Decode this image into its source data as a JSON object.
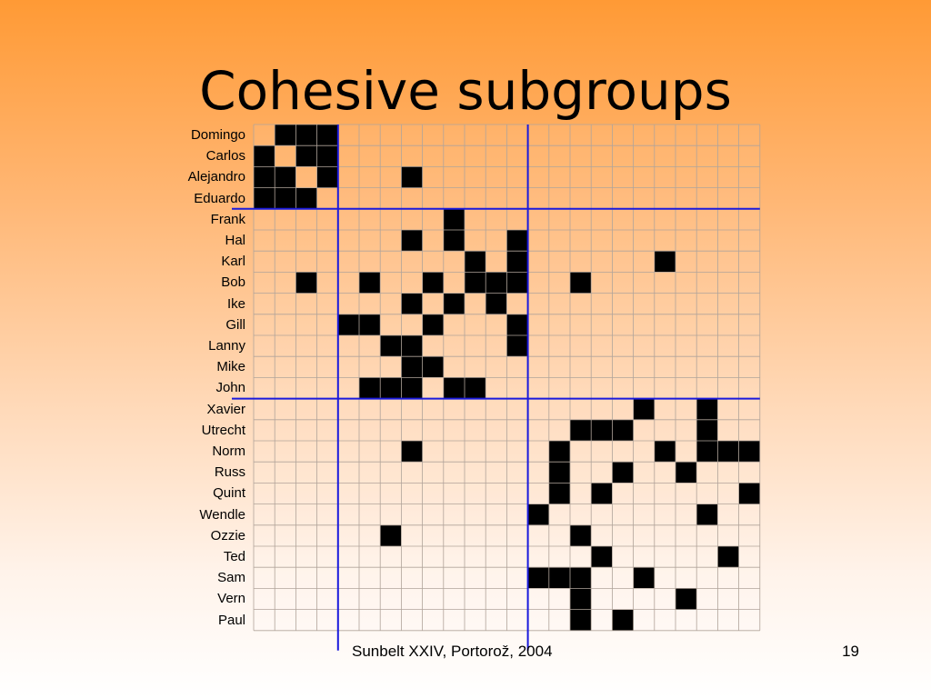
{
  "title": "Cohesive subgroups",
  "footer": "Sunbelt XXIV, Portorož, 2004",
  "page_number": "19",
  "colors": {
    "filled_cell": "#000000",
    "grid_line": "#b0a49a",
    "partition_line": "#1a1adc"
  },
  "matrix": {
    "actors": [
      "Domingo",
      "Carlos",
      "Alejandro",
      "Eduardo",
      "Frank",
      "Hal",
      "Karl",
      "Bob",
      "Ike",
      "Gill",
      "Lanny",
      "Mike",
      "John",
      "Xavier",
      "Utrecht",
      "Norm",
      "Russ",
      "Quint",
      "Wendle",
      "Ozzie",
      "Ted",
      "Sam",
      "Vern",
      "Paul"
    ],
    "partition_after": [
      4,
      13
    ],
    "ties": [
      [
        1,
        2,
        3
      ],
      [
        0,
        2,
        3
      ],
      [
        0,
        1,
        3,
        7
      ],
      [
        0,
        1,
        2
      ],
      [
        9
      ],
      [
        7,
        9,
        12
      ],
      [
        10,
        12,
        19
      ],
      [
        2,
        5,
        8,
        10,
        11,
        12,
        15
      ],
      [
        7,
        9,
        11
      ],
      [
        4,
        5,
        8,
        12
      ],
      [
        6,
        7,
        12
      ],
      [
        7,
        8
      ],
      [
        5,
        6,
        7,
        9,
        10
      ],
      [
        18,
        21
      ],
      [
        15,
        16,
        17,
        21
      ],
      [
        7,
        14,
        19,
        21,
        22,
        23
      ],
      [
        14,
        17,
        20
      ],
      [
        14,
        16,
        23
      ],
      [
        13,
        21
      ],
      [
        6,
        15
      ],
      [
        16,
        22
      ],
      [
        13,
        14,
        15,
        18
      ],
      [
        15,
        20
      ],
      [
        15,
        17
      ]
    ]
  }
}
